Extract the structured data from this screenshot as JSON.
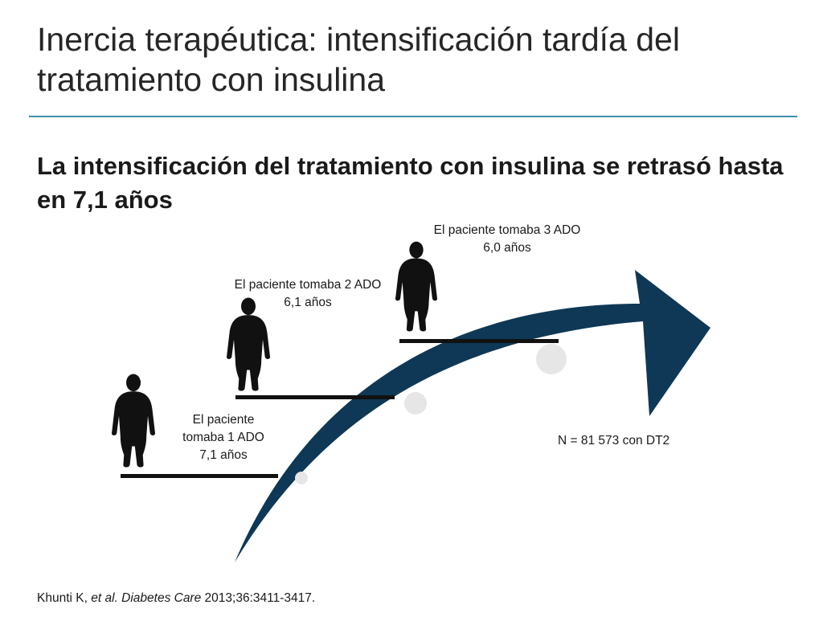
{
  "slide": {
    "title": "Inercia terapéutica: intensificación tardía del tratamiento con insulina",
    "subtitle": "La intensificación del tratamiento con insulina se retrasó hasta en 7,1 años",
    "colors": {
      "arrow": "#0e3856",
      "title_rule": "#3f8fa8",
      "circle": "#e6e6e6",
      "figure": "#111111"
    }
  },
  "steps": [
    {
      "line1": "El paciente",
      "line2": "tomaba 1 ADO",
      "line3": "7,1 años"
    },
    {
      "line1": "El paciente tomaba 2 ADO",
      "line2": "6,1 años"
    },
    {
      "line1": "El paciente tomaba 3 ADO",
      "line2": "6,0 años"
    }
  ],
  "icons": [
    "person-silhouette-icon",
    "person-silhouette-icon",
    "person-silhouette-icon"
  ],
  "n_label": "N = 81 573 con DT2",
  "citation": {
    "authors": "Khunti K,",
    "etal": "et al.",
    "journal": "Diabetes Care",
    "details": "2013;36:3411-3417."
  }
}
